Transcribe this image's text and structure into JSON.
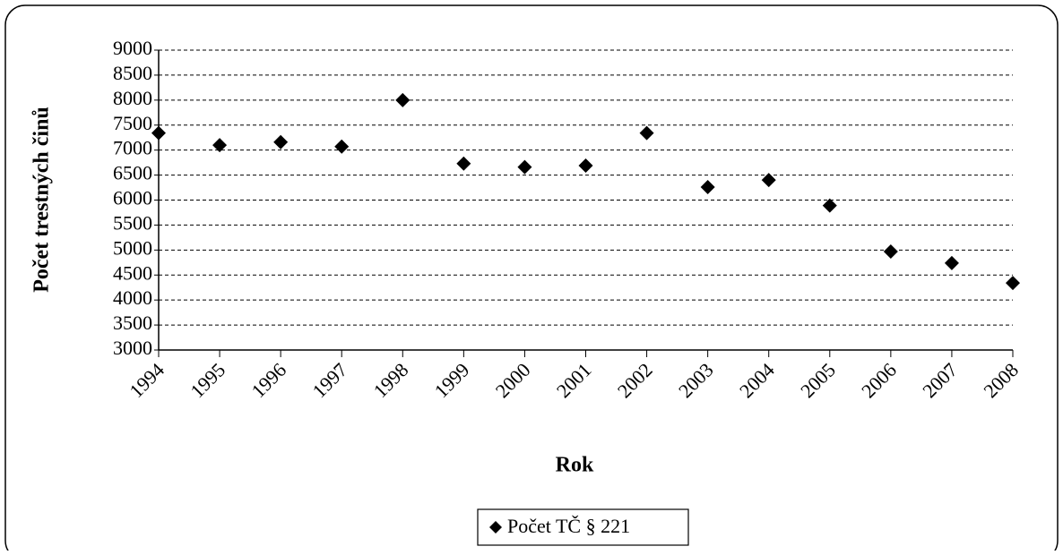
{
  "chart_data": {
    "type": "scatter",
    "y_label": "Počet trestných činů",
    "x_label": "Rok",
    "categories": [
      "1994",
      "1995",
      "1996",
      "1997",
      "1998",
      "1999",
      "2000",
      "2001",
      "2002",
      "2003",
      "2004",
      "2005",
      "2006",
      "2007",
      "2008"
    ],
    "series": [
      {
        "name": "Počet TČ § 221",
        "color": "#000000",
        "values": [
          7340,
          7100,
          7160,
          7070,
          8000,
          6730,
          6660,
          6690,
          7340,
          6260,
          6400,
          5890,
          4970,
          4740,
          4340
        ]
      }
    ],
    "ylim": [
      3000,
      9000
    ],
    "yticks": [
      3000,
      3500,
      4000,
      4500,
      5000,
      5500,
      6000,
      6500,
      7000,
      7500,
      8000,
      8500,
      9000
    ],
    "grid": true,
    "legend": "bottom"
  }
}
